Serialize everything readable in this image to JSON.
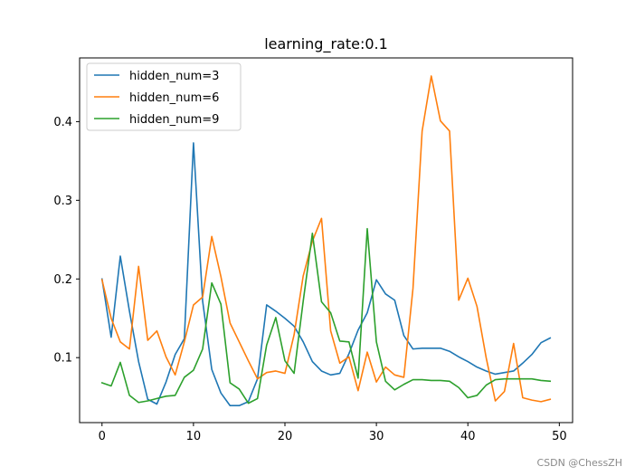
{
  "chart_data": {
    "type": "line",
    "title": "learning_rate:0.1",
    "xlabel": "",
    "ylabel": "",
    "xlim": [
      -2.45,
      51.45
    ],
    "ylim": [
      0.0174,
      0.481
    ],
    "xticks": [
      0,
      10,
      20,
      30,
      40,
      50
    ],
    "yticks": [
      0.1,
      0.2,
      0.3,
      0.4
    ],
    "xtick_labels": [
      "0",
      "10",
      "20",
      "30",
      "40",
      "50"
    ],
    "ytick_labels": [
      "0.1",
      "0.2",
      "0.3",
      "0.4"
    ],
    "grid": false,
    "legend_position": "top-left",
    "x": [
      0,
      1,
      2,
      3,
      4,
      5,
      6,
      7,
      8,
      9,
      10,
      11,
      12,
      13,
      14,
      15,
      16,
      17,
      18,
      19,
      20,
      21,
      22,
      23,
      24,
      25,
      26,
      27,
      28,
      29,
      30,
      31,
      32,
      33,
      34,
      35,
      36,
      37,
      38,
      39,
      40,
      41,
      42,
      43,
      44,
      45,
      46,
      47,
      48,
      49
    ],
    "series": [
      {
        "name": "hidden_num=3",
        "color": "#1f77b4",
        "values": [
          0.2,
          0.126,
          0.229,
          0.159,
          0.095,
          0.047,
          0.041,
          0.069,
          0.104,
          0.124,
          0.373,
          0.172,
          0.085,
          0.055,
          0.039,
          0.039,
          0.044,
          0.073,
          0.167,
          0.159,
          0.15,
          0.14,
          0.12,
          0.095,
          0.083,
          0.078,
          0.08,
          0.105,
          0.135,
          0.157,
          0.199,
          0.181,
          0.173,
          0.128,
          0.111,
          0.112,
          0.112,
          0.112,
          0.108,
          0.101,
          0.095,
          0.088,
          0.083,
          0.079,
          0.081,
          0.083,
          0.093,
          0.104,
          0.119,
          0.125
        ]
      },
      {
        "name": "hidden_num=6",
        "color": "#ff7f0e",
        "values": [
          0.199,
          0.15,
          0.12,
          0.111,
          0.216,
          0.122,
          0.134,
          0.101,
          0.078,
          0.12,
          0.167,
          0.177,
          0.254,
          0.203,
          0.144,
          0.12,
          0.096,
          0.073,
          0.081,
          0.083,
          0.08,
          0.129,
          0.204,
          0.248,
          0.277,
          0.134,
          0.093,
          0.101,
          0.058,
          0.107,
          0.069,
          0.088,
          0.078,
          0.075,
          0.188,
          0.388,
          0.458,
          0.401,
          0.388,
          0.173,
          0.201,
          0.165,
          0.1,
          0.045,
          0.057,
          0.118,
          0.049,
          0.046,
          0.044,
          0.047
        ]
      },
      {
        "name": "hidden_num=9",
        "color": "#2ca02c",
        "values": [
          0.068,
          0.064,
          0.094,
          0.052,
          0.043,
          0.045,
          0.048,
          0.051,
          0.052,
          0.075,
          0.084,
          0.111,
          0.195,
          0.168,
          0.068,
          0.06,
          0.042,
          0.048,
          0.116,
          0.151,
          0.096,
          0.08,
          0.172,
          0.258,
          0.171,
          0.157,
          0.121,
          0.12,
          0.074,
          0.264,
          0.12,
          0.07,
          0.059,
          0.066,
          0.072,
          0.072,
          0.071,
          0.071,
          0.07,
          0.062,
          0.049,
          0.052,
          0.065,
          0.072,
          0.073,
          0.073,
          0.073,
          0.073,
          0.071,
          0.07
        ]
      }
    ]
  },
  "watermark": "CSDN @ChessZH"
}
